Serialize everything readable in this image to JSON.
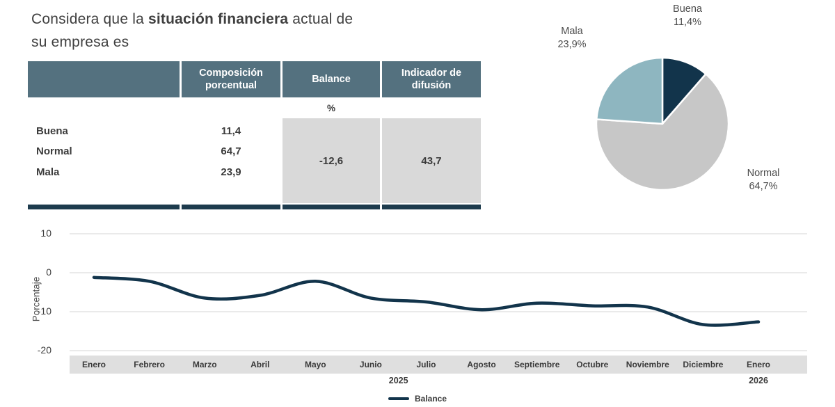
{
  "title": {
    "prefix": "Considera que la ",
    "highlight": "situación financiera",
    "suffix": " actual de",
    "line2": "su empresa es"
  },
  "table": {
    "col_headers": [
      "Composición porcentual",
      "Balance",
      "Indicador de difusión"
    ],
    "unit": "%",
    "rows": [
      {
        "label": "Buena",
        "value": "11,4"
      },
      {
        "label": "Normal",
        "value": "64,7"
      },
      {
        "label": "Mala",
        "value": "23,9"
      }
    ],
    "balance_value": "-12,6",
    "difusion_value": "43,7"
  },
  "colors": {
    "table_header_bg": "#54717f",
    "table_cell_bg": "#d9d9d9",
    "navy": "#12344b",
    "teal": "#8eb6c0",
    "pie_gray": "#c7c7c7",
    "axis_band_bg": "#dfdfdf",
    "grid": "#d6d6d6",
    "text": "#3f3f3f"
  },
  "chart_data": [
    {
      "type": "pie",
      "labels": [
        "Buena",
        "Normal",
        "Mala"
      ],
      "values": [
        11.4,
        64.7,
        23.9
      ],
      "value_labels": [
        "11,4%",
        "64,7%",
        "23,9%"
      ],
      "colors": [
        "#12344b",
        "#c7c7c7",
        "#8eb6c0"
      ],
      "start_angle": "top",
      "direction": "clockwise"
    },
    {
      "type": "line",
      "ylabel": "Porcentaje",
      "ylim": [
        -20,
        10
      ],
      "yticks": [
        10,
        0,
        -10,
        -20
      ],
      "categories": [
        "Enero",
        "Febrero",
        "Marzo",
        "Abril",
        "Mayo",
        "Junio",
        "Julio",
        "Agosto",
        "Septiembre",
        "Octubre",
        "Noviembre",
        "Diciembre",
        "Enero"
      ],
      "year_labels": [
        {
          "text": "2025"
        },
        {
          "text": "2026"
        }
      ],
      "series": [
        {
          "name": "Balance",
          "color": "#12344b",
          "values": [
            -1.2,
            -2.2,
            -6.5,
            -5.8,
            -2.2,
            -6.5,
            -7.5,
            -9.5,
            -7.8,
            -8.5,
            -8.8,
            -13.3,
            -12.6
          ]
        }
      ],
      "legend_position": "bottom",
      "grid": true
    }
  ]
}
